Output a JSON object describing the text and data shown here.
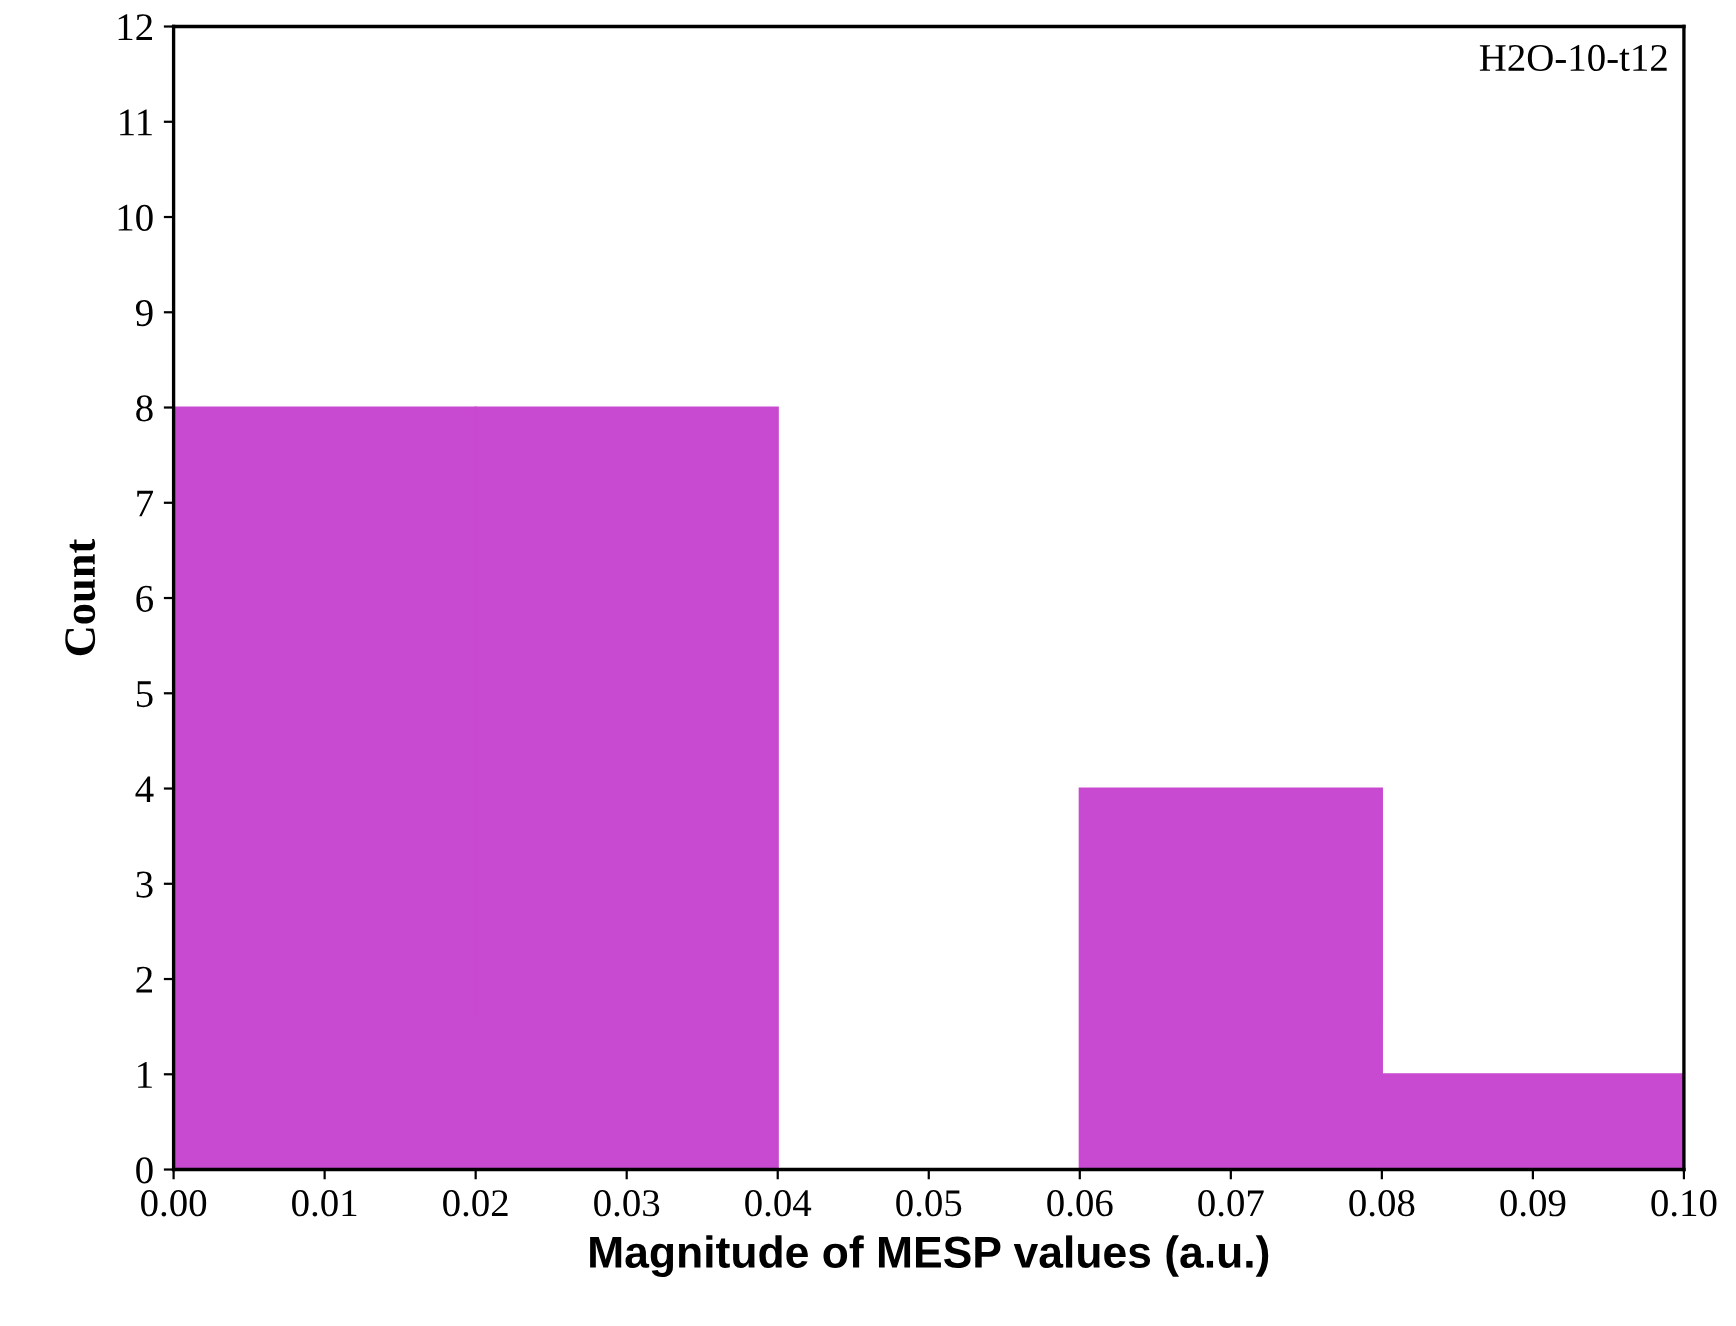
{
  "chart_data": {
    "type": "histogram",
    "xlabel": "Magnitude of MESP values (a.u.)",
    "ylabel": "Count",
    "annotations": [
      "H2O-10-t12"
    ],
    "bins": [
      0.0,
      0.02,
      0.04,
      0.06,
      0.08,
      0.1
    ],
    "values": [
      8,
      8,
      0,
      4,
      1
    ],
    "color": "#c84ad0",
    "xlim": [
      0.0,
      0.1
    ],
    "ylim": [
      0,
      12
    ],
    "xticks": [
      {
        "value": 0.0,
        "label": "0.00"
      },
      {
        "value": 0.01,
        "label": "0.01"
      },
      {
        "value": 0.02,
        "label": "0.02"
      },
      {
        "value": 0.03,
        "label": "0.03"
      },
      {
        "value": 0.04,
        "label": "0.04"
      },
      {
        "value": 0.05,
        "label": "0.05"
      },
      {
        "value": 0.06,
        "label": "0.06"
      },
      {
        "value": 0.07,
        "label": "0.07"
      },
      {
        "value": 0.08,
        "label": "0.08"
      },
      {
        "value": 0.09,
        "label": "0.09"
      },
      {
        "value": 0.1,
        "label": "0.10"
      }
    ],
    "yticks": [
      0,
      1,
      2,
      3,
      4,
      5,
      6,
      7,
      8,
      9,
      10,
      11,
      12
    ],
    "grid": false,
    "legend": false
  }
}
